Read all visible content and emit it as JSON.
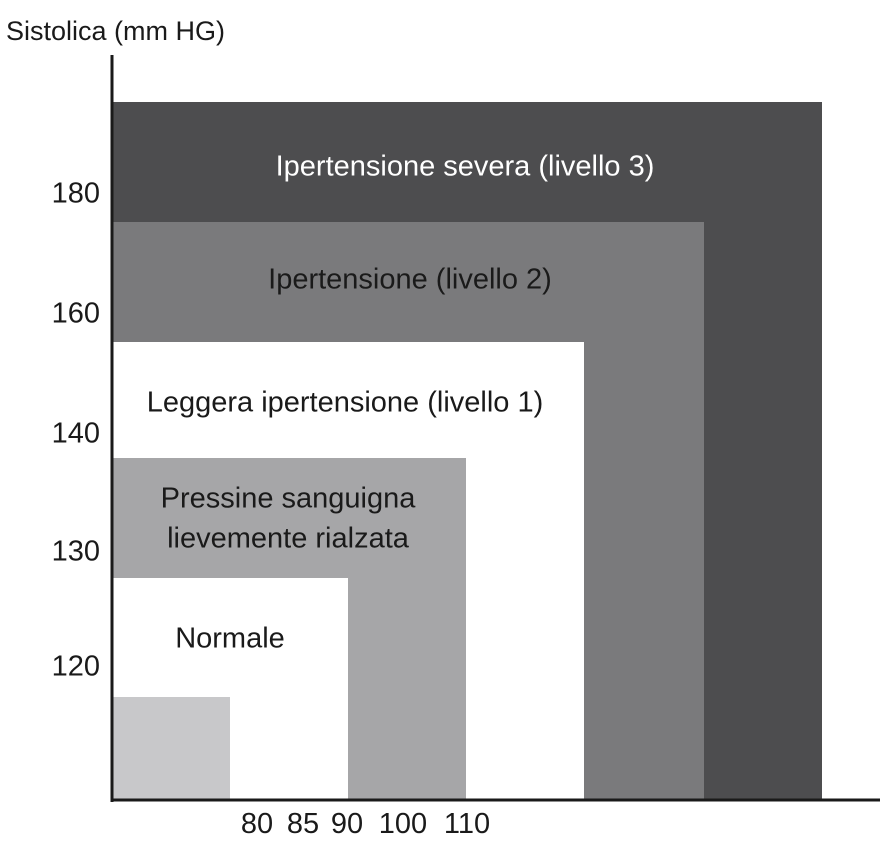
{
  "chart_data": {
    "type": "area",
    "title": "",
    "ylabel": "Sistolica (mm HG)",
    "xlabel": "",
    "y_ticks": [
      "180",
      "160",
      "140",
      "130",
      "120"
    ],
    "x_ticks": [
      "80",
      "85",
      "90",
      "100",
      "110"
    ],
    "grid": false,
    "legend": "none",
    "zones": [
      {
        "label": "Ipertensione severa (livello 3)",
        "color": "#4d4d4f",
        "label_color": "#ffffff"
      },
      {
        "label": "Ipertensione (livello 2)",
        "color": "#7a7a7c",
        "label_color": "#1a1a1a"
      },
      {
        "label": "Leggera ipertensione (livello 1)",
        "color": "#ffffff",
        "label_color": "#1a1a1a"
      },
      {
        "label": "Pressine sanguigna\nlievemente rialzata",
        "color": "#a6a6a8",
        "label_color": "#1a1a1a"
      },
      {
        "label": "Normale",
        "color": "#ffffff",
        "label_color": "#1a1a1a"
      },
      {
        "label": "",
        "color": "#c8c8ca",
        "label_color": "#1a1a1a"
      }
    ]
  }
}
